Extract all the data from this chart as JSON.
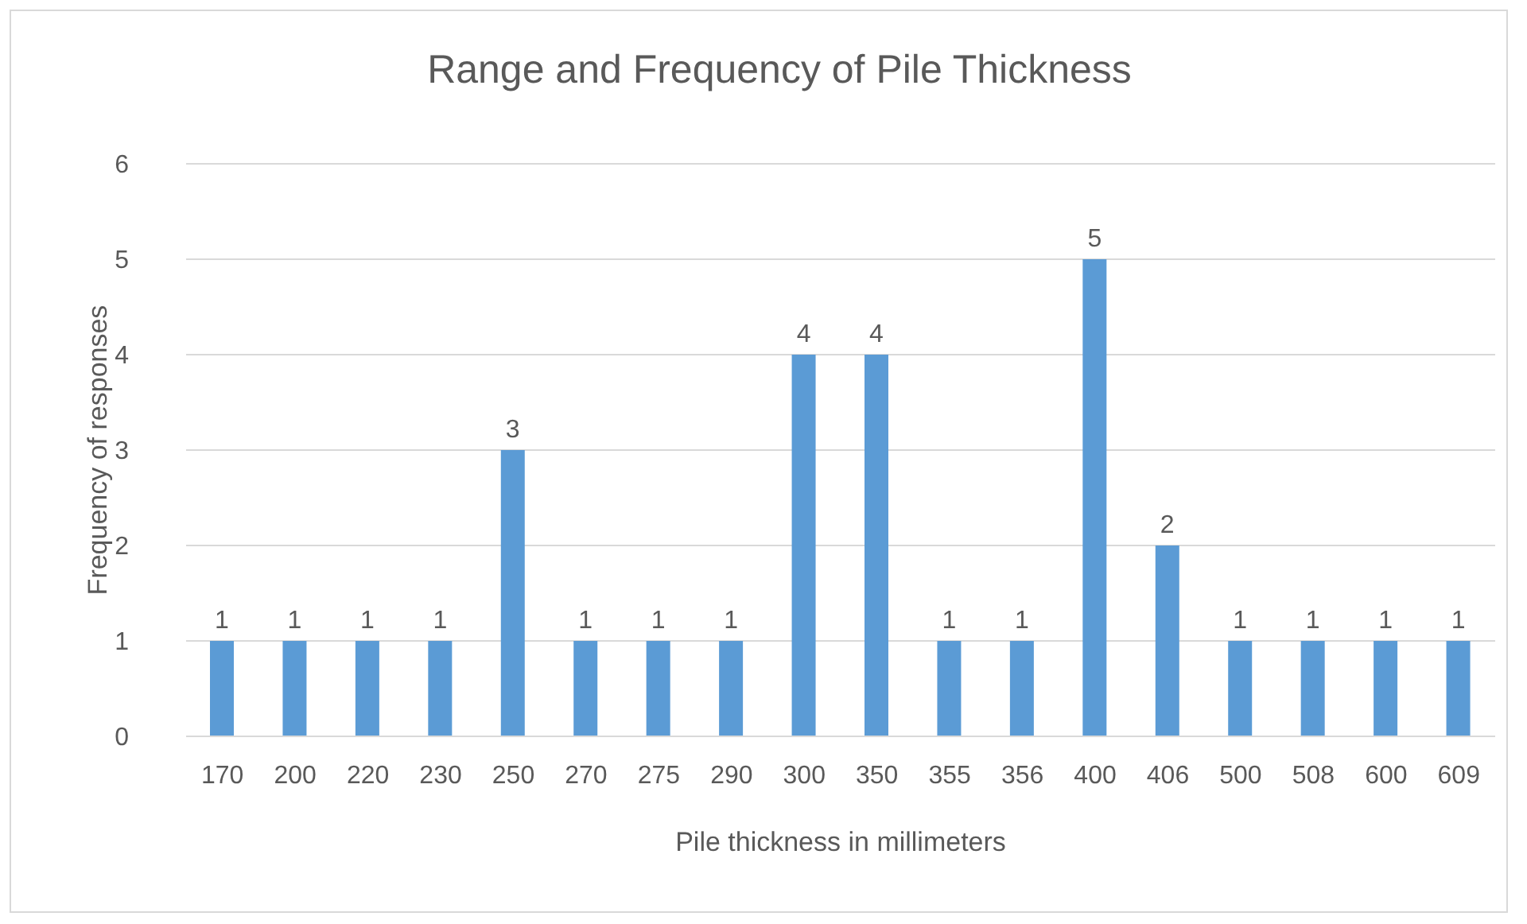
{
  "chart_data": {
    "type": "bar",
    "title": "Range and Frequency of Pile Thickness",
    "xlabel": "Pile thickness in millimeters",
    "ylabel": "Frequency of responses",
    "categories": [
      "170",
      "200",
      "220",
      "230",
      "250",
      "270",
      "275",
      "290",
      "300",
      "350",
      "355",
      "356",
      "400",
      "406",
      "500",
      "508",
      "600",
      "609"
    ],
    "values": [
      1,
      1,
      1,
      1,
      3,
      1,
      1,
      1,
      4,
      4,
      1,
      1,
      5,
      2,
      1,
      1,
      1,
      1
    ],
    "color": "#5b9bd5",
    "ylim": [
      0,
      6
    ],
    "yticks": [
      0,
      1,
      2,
      3,
      4,
      5,
      6
    ],
    "grid": "y",
    "data_labels": true
  }
}
